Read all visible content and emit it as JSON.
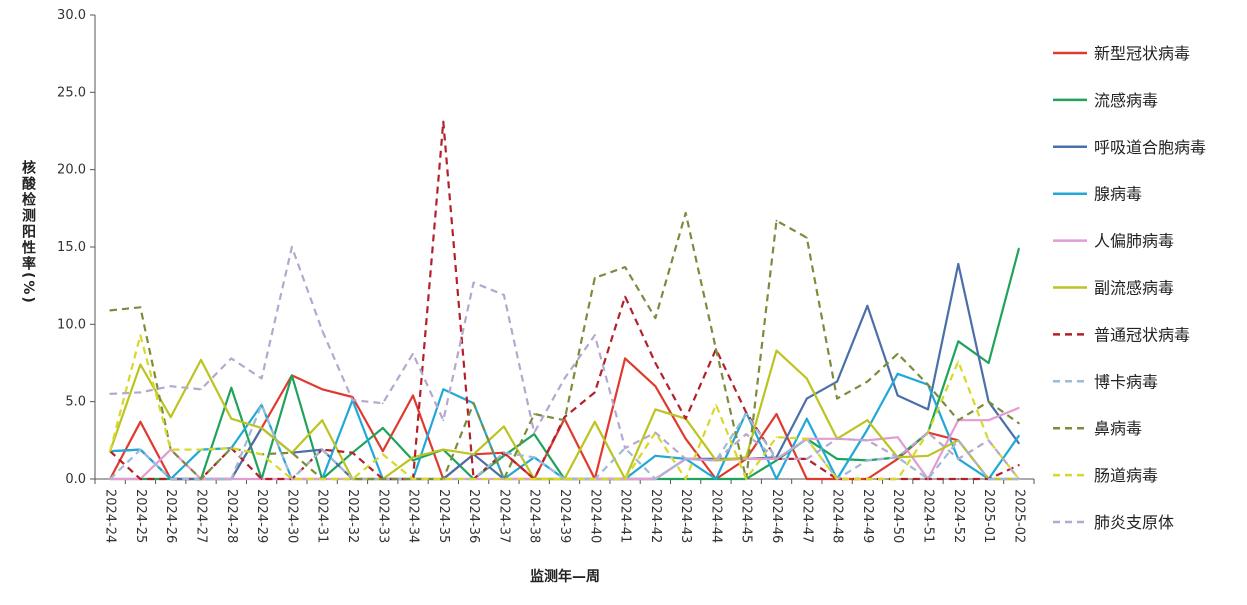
{
  "chart_data": {
    "type": "line",
    "title": "",
    "xlabel": "监测年—周",
    "ylabel": "核酸检测阳性率(%)",
    "ylim": [
      0,
      30
    ],
    "yticks": [
      "0.0",
      "5.0",
      "10.0",
      "15.0",
      "20.0",
      "25.0",
      "30.0"
    ],
    "grid": false,
    "legend_position": "right",
    "categories": [
      "2024-24",
      "2024-25",
      "2024-26",
      "2024-27",
      "2024-28",
      "2024-29",
      "2024-30",
      "2024-31",
      "2024-32",
      "2024-33",
      "2024-34",
      "2024-35",
      "2024-36",
      "2024-37",
      "2024-38",
      "2024-39",
      "2024-40",
      "2024-41",
      "2024-42",
      "2024-43",
      "2024-44",
      "2024-45",
      "2024-46",
      "2024-47",
      "2024-48",
      "2024-49",
      "2024-50",
      "2024-51",
      "2024-52",
      "2025-01",
      "2025-02"
    ],
    "series": [
      {
        "name": "新型冠状病毒",
        "color": "#e03a2f",
        "dash": "solid",
        "values": [
          0.0,
          3.7,
          0.0,
          0.0,
          0.0,
          3.3,
          6.7,
          5.8,
          5.3,
          1.8,
          5.4,
          0.0,
          1.6,
          1.7,
          0.0,
          3.9,
          0.0,
          7.8,
          6.0,
          2.6,
          0.0,
          1.3,
          4.2,
          0.0,
          0.0,
          0.0,
          1.3,
          3.0,
          2.5,
          0.0,
          0.0
        ]
      },
      {
        "name": "流感病毒",
        "color": "#1fa35a",
        "dash": "solid",
        "values": [
          0.0,
          0.0,
          0.0,
          0.0,
          5.9,
          0.0,
          6.7,
          0.0,
          1.7,
          3.3,
          1.2,
          1.9,
          0.0,
          1.5,
          2.9,
          0.0,
          0.0,
          0.0,
          0.0,
          0.0,
          0.0,
          0.0,
          1.2,
          2.6,
          1.3,
          1.2,
          1.4,
          3.0,
          8.9,
          7.5,
          14.9
        ]
      },
      {
        "name": "呼吸道合胞病毒",
        "color": "#4b6fa8",
        "dash": "solid",
        "values": [
          1.8,
          1.9,
          0.0,
          0.0,
          0.0,
          3.3,
          1.7,
          1.9,
          0.0,
          0.0,
          0.0,
          0.0,
          1.6,
          0.0,
          0.0,
          0.0,
          0.0,
          0.0,
          0.0,
          1.3,
          1.3,
          1.3,
          1.4,
          5.2,
          6.3,
          11.2,
          5.4,
          4.5,
          13.9,
          5.0,
          2.3
        ]
      },
      {
        "name": "腺病毒",
        "color": "#1fa8d8",
        "dash": "solid",
        "values": [
          1.8,
          1.9,
          0.0,
          1.9,
          2.0,
          4.8,
          0.0,
          0.0,
          5.1,
          0.0,
          0.0,
          5.8,
          4.9,
          0.0,
          1.4,
          0.0,
          0.0,
          0.0,
          1.5,
          1.3,
          0.0,
          4.3,
          0.0,
          3.9,
          0.0,
          3.2,
          6.8,
          6.1,
          1.3,
          0.0,
          2.8
        ]
      },
      {
        "name": "人偏肺病毒",
        "color": "#e39bd3",
        "dash": "solid",
        "values": [
          0.0,
          0.0,
          1.9,
          0.0,
          0.0,
          0.0,
          0.0,
          0.0,
          0.0,
          0.0,
          0.0,
          0.0,
          0.0,
          0.0,
          0.0,
          0.0,
          0.0,
          0.0,
          0.0,
          1.3,
          1.2,
          1.3,
          1.3,
          2.6,
          2.6,
          2.5,
          2.7,
          0.0,
          3.8,
          3.8,
          4.6
        ]
      },
      {
        "name": "副流感病毒",
        "color": "#bcc41f",
        "dash": "solid",
        "values": [
          1.8,
          7.4,
          4.0,
          7.7,
          3.9,
          3.3,
          1.7,
          3.8,
          0.0,
          0.0,
          1.4,
          1.9,
          1.6,
          3.4,
          0.0,
          0.0,
          3.7,
          0.0,
          4.5,
          3.9,
          1.2,
          1.4,
          8.3,
          6.5,
          2.6,
          3.8,
          1.4,
          1.5,
          2.5,
          0.0,
          0.0
        ]
      },
      {
        "name": "普通冠状病毒",
        "color": "#b3202a",
        "dash": "long",
        "values": [
          1.8,
          0.0,
          0.0,
          0.0,
          2.0,
          0.0,
          0.0,
          1.9,
          1.7,
          0.0,
          0.0,
          23.1,
          0.0,
          1.7,
          0.0,
          4.0,
          5.6,
          11.8,
          7.5,
          3.9,
          8.4,
          4.3,
          1.3,
          1.3,
          0.0,
          0.0,
          0.0,
          0.0,
          0.0,
          0.0,
          0.9
        ]
      },
      {
        "name": "博卡病毒",
        "color": "#9fbad6",
        "dash": "long",
        "values": [
          0.0,
          1.9,
          0.0,
          0.0,
          0.0,
          4.8,
          0.0,
          1.9,
          0.0,
          0.0,
          0.0,
          0.0,
          0.0,
          1.7,
          1.4,
          0.0,
          0.0,
          2.0,
          0.0,
          1.3,
          1.2,
          4.2,
          1.3,
          2.6,
          0.0,
          1.2,
          1.4,
          0.0,
          2.5,
          0.0,
          0.0
        ]
      },
      {
        "name": "鼻病毒",
        "color": "#7b8d3c",
        "dash": "long",
        "values": [
          10.9,
          11.1,
          1.9,
          0.0,
          2.0,
          1.6,
          1.7,
          0.0,
          0.0,
          0.0,
          0.0,
          0.0,
          4.9,
          0.0,
          4.2,
          3.8,
          13.0,
          13.7,
          10.4,
          17.2,
          8.4,
          0.0,
          16.7,
          15.6,
          5.2,
          6.3,
          8.1,
          6.1,
          3.8,
          5.0,
          3.6
        ]
      },
      {
        "name": "肠道病毒",
        "color": "#d8d82a",
        "dash": "long",
        "values": [
          1.8,
          9.3,
          1.9,
          1.9,
          2.0,
          1.6,
          0.0,
          0.0,
          0.0,
          1.6,
          0.0,
          0.0,
          0.0,
          0.0,
          0.0,
          0.0,
          0.0,
          0.0,
          3.0,
          0.0,
          4.8,
          0.0,
          2.7,
          2.6,
          0.0,
          0.0,
          0.0,
          3.0,
          7.6,
          2.5,
          0.0
        ]
      },
      {
        "name": "肺炎支原体",
        "color": "#b7a7cf",
        "dash": "long",
        "values": [
          5.5,
          5.6,
          6.0,
          5.8,
          7.8,
          6.5,
          15.0,
          9.6,
          5.1,
          4.9,
          8.1,
          3.8,
          12.7,
          11.9,
          3.0,
          6.5,
          9.3,
          2.0,
          3.0,
          1.3,
          1.2,
          2.9,
          1.3,
          1.3,
          2.6,
          2.5,
          1.4,
          3.0,
          1.3,
          2.5,
          0.0
        ]
      }
    ]
  }
}
